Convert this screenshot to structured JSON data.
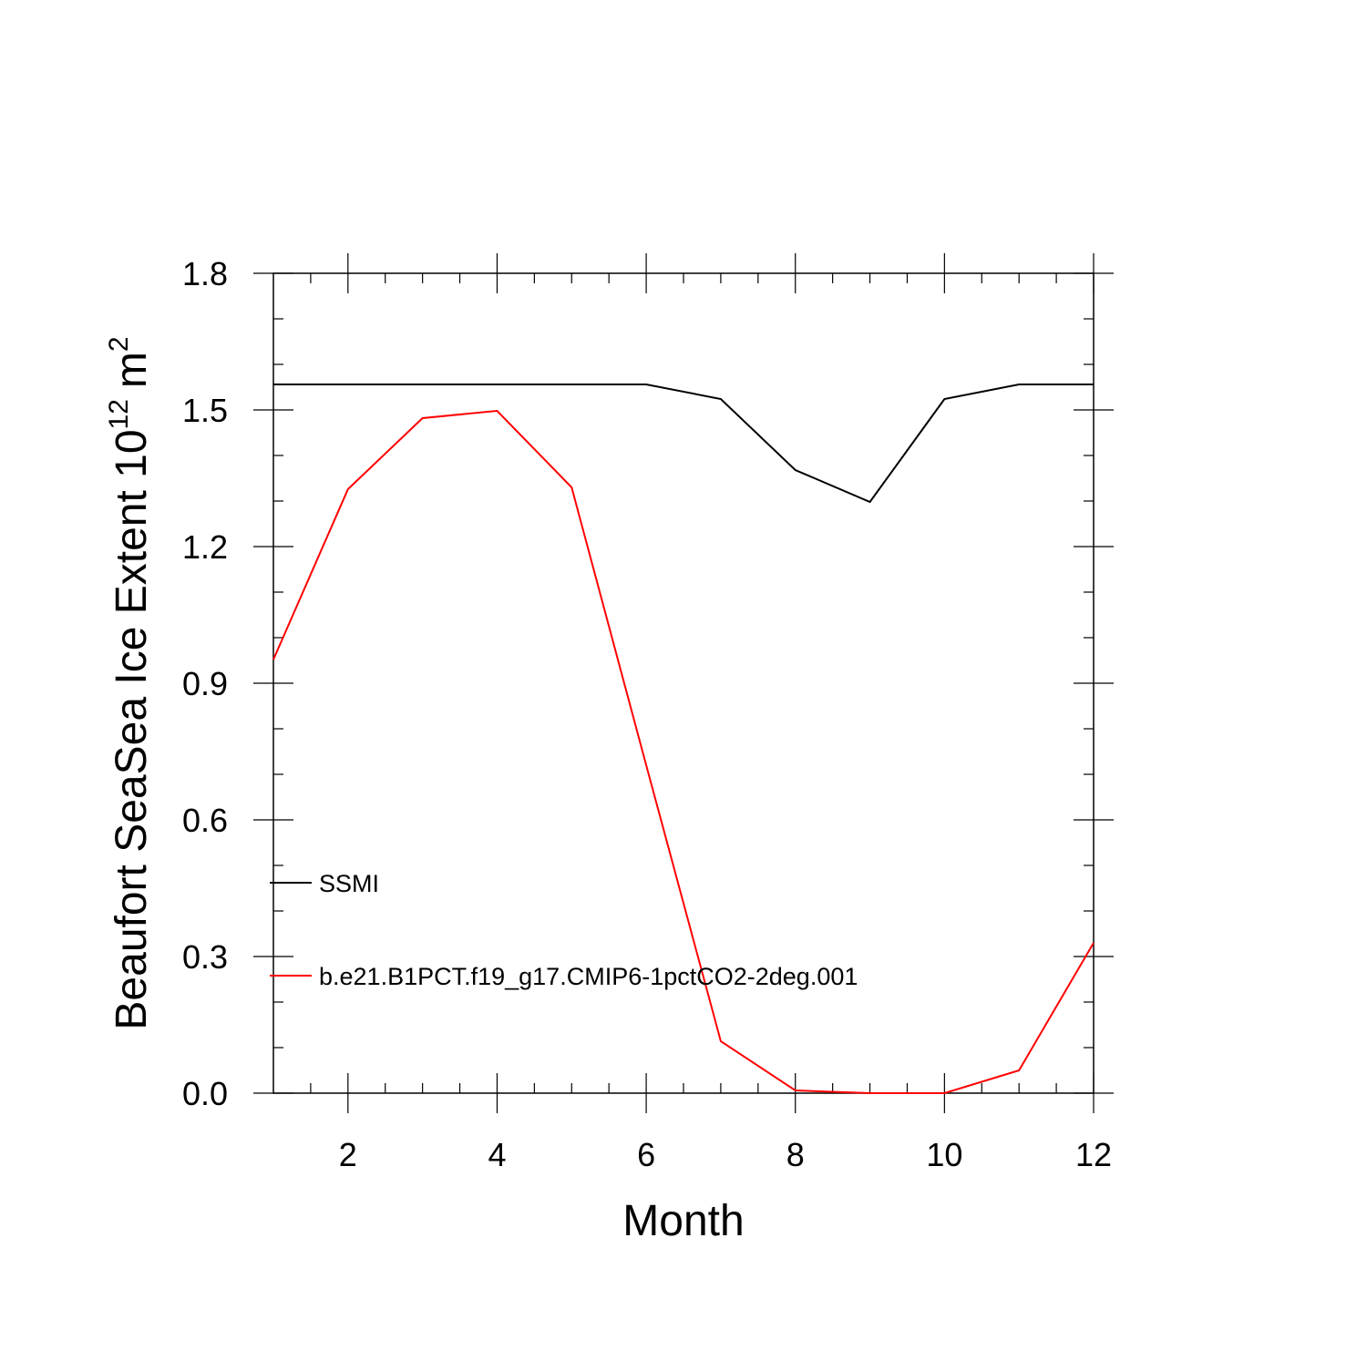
{
  "chart_data": {
    "type": "line",
    "xlabel": "Month",
    "ylabel": {
      "text": "Beaufort SeaSea Ice Extent 10",
      "exponent": "12",
      "unit": "m",
      "unit_exponent": "2"
    },
    "x": [
      1,
      2,
      3,
      4,
      5,
      6,
      7,
      8,
      9,
      10,
      11,
      12
    ],
    "series": [
      {
        "name": "SSMI",
        "color": "#000000",
        "values": [
          1.556,
          1.556,
          1.556,
          1.556,
          1.556,
          1.556,
          1.524,
          1.368,
          1.298,
          1.524,
          1.556,
          1.556
        ]
      },
      {
        "name": "b.e21.B1PCT.f19_g17.CMIP6-1pctCO2-2deg.001",
        "color": "#ff0000",
        "values": [
          0.952,
          1.326,
          1.482,
          1.498,
          1.33,
          0.72,
          0.114,
          0.006,
          0.0,
          0.0,
          0.05,
          0.33
        ]
      }
    ],
    "xlim": [
      1,
      12
    ],
    "xticks": [
      2,
      4,
      6,
      8,
      10,
      12
    ],
    "xminorticks": [
      1.5,
      2.5,
      3,
      3.5,
      4.5,
      5,
      5.5,
      6.5,
      7,
      7.5,
      8.5,
      9,
      9.5,
      10.5,
      11,
      11.5
    ],
    "ylim": [
      0,
      1.8
    ],
    "yticks": [
      {
        "value": 0,
        "label": "0.0"
      },
      0.3,
      0.6,
      0.9,
      1.2,
      1.5,
      1.8
    ],
    "yminorticks": [
      0.1,
      0.2,
      0.4,
      0.5,
      0.7,
      0.8,
      1.0,
      1.1,
      1.3,
      1.4,
      1.6,
      1.7
    ]
  }
}
